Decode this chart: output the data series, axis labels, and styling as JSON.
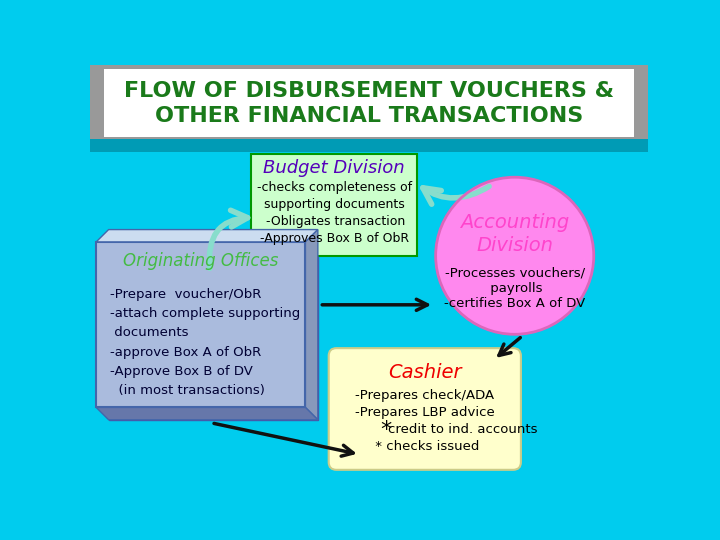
{
  "title_line1": "FLOW OF DISBURSEMENT VOUCHERS &",
  "title_line2": "OTHER FINANCIAL TRANSACTIONS",
  "title_color": "#1a7a1a",
  "title_bg": "#ffffff",
  "background_color": "#00ccee",
  "teal_band_color": "#009bb5",
  "budget_title": "Budget Division",
  "budget_title_color": "#5500bb",
  "budget_box_color": "#ccffcc",
  "budget_edge_color": "#009900",
  "budget_lines": [
    "-checks completeness of",
    "supporting documents",
    " -Obligates transaction",
    "-Approves Box B of ObR"
  ],
  "budget_text_color": "#000000",
  "accounting_title": "Accounting\nDivision",
  "accounting_title_color": "#ff44cc",
  "accounting_circle_color": "#ff88ee",
  "accounting_lines": [
    "-Processes vouchers/",
    " payrolls",
    "-certifies Box A of DV"
  ],
  "accounting_text_color": "#000000",
  "originating_title": "Originating Offices",
  "originating_title_color": "#44bb44",
  "originating_face_color": "#aabbdd",
  "originating_bevel_light": "#ccddf0",
  "originating_bevel_dark": "#8899bb",
  "originating_bevel_shadow": "#6677aa",
  "originating_lines": [
    "-Prepare  voucher/ObR",
    "-attach complete supporting",
    " documents",
    "-approve Box A of ObR",
    "-Approve Box B of DV",
    "  (in most transactions)"
  ],
  "originating_text_color": "#000033",
  "cashier_title": "Cashier",
  "cashier_title_color": "#ee0000",
  "cashier_box_color": "#ffffcc",
  "cashier_edge_color": "#cccc88",
  "cashier_lines": [
    "-Prepares check/ADA",
    "-Prepares LBP advice",
    "*credit to ind. accounts",
    " * checks issued"
  ],
  "cashier_text_color": "#000000",
  "teal_arrow_color": "#88ddcc",
  "black_arrow_color": "#111111",
  "header_coin_color": "#888888"
}
